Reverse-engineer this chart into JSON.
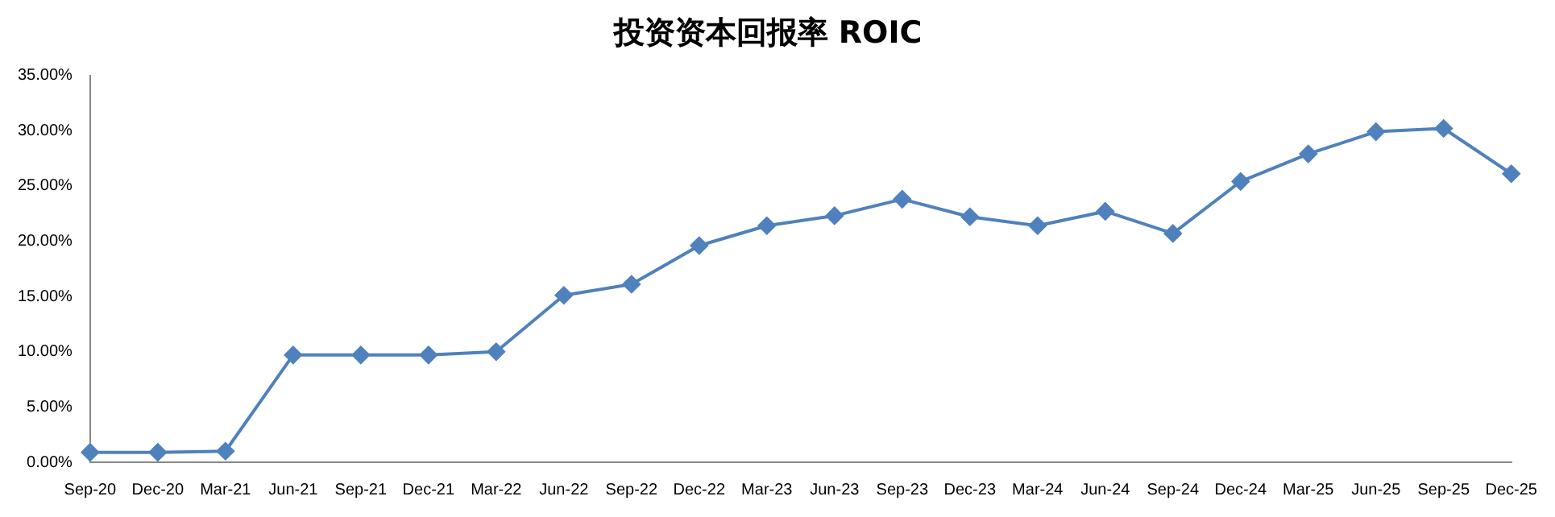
{
  "chart_data": {
    "type": "line",
    "title": "投资资本回报率 ROIC",
    "categories": [
      "Sep-20",
      "Dec-20",
      "Mar-21",
      "Jun-21",
      "Sep-21",
      "Dec-21",
      "Mar-22",
      "Jun-22",
      "Sep-22",
      "Dec-22",
      "Mar-23",
      "Jun-23",
      "Sep-23",
      "Dec-23",
      "Mar-24",
      "Jun-24",
      "Sep-24",
      "Dec-24",
      "Mar-25",
      "Jun-25",
      "Sep-25",
      "Dec-25"
    ],
    "series": [
      {
        "color": "#4f81bd",
        "values": [
          0.9,
          0.9,
          1.0,
          9.7,
          9.7,
          9.7,
          10.0,
          15.1,
          16.1,
          19.6,
          21.4,
          22.3,
          23.8,
          22.2,
          21.4,
          22.7,
          20.7,
          25.4,
          27.9,
          29.9,
          30.2,
          26.1
        ]
      }
    ],
    "ylim": [
      0,
      35
    ],
    "yticks": [
      {
        "value": 0,
        "label": "0.00%"
      },
      {
        "value": 5,
        "label": "5.00%"
      },
      {
        "value": 10,
        "label": "10.00%"
      },
      {
        "value": 15,
        "label": "15.00%"
      },
      {
        "value": 20,
        "label": "20.00%"
      },
      {
        "value": 25,
        "label": "25.00%"
      },
      {
        "value": 30,
        "label": "30.00%"
      },
      {
        "value": 35,
        "label": "35.00%"
      }
    ],
    "grid": false,
    "legend": false,
    "marker": "diamond",
    "line_style": "solid"
  }
}
